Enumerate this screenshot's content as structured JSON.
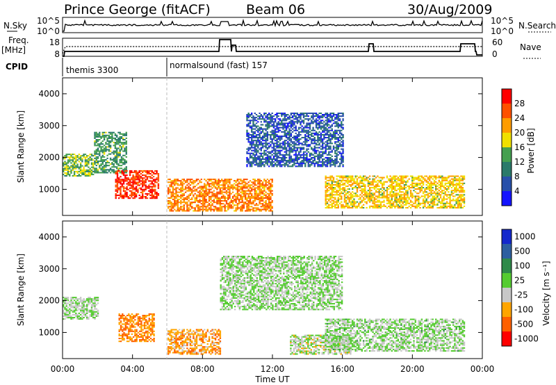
{
  "header": {
    "station": "Prince George (fitACF)",
    "beam": "Beam 06",
    "date": "30/Aug/2009"
  },
  "strips": {
    "nsky_label": "N.Sky",
    "nsky_ticks": [
      "10^5",
      "10^0"
    ],
    "nsearch_label": "N.Search",
    "nsearch_ticks": [
      "10^5",
      "10^0"
    ],
    "freq_label": "Freq.",
    "freq_unit": "[MHz]",
    "freq_ticks": [
      "18",
      "8"
    ],
    "nave_label": "Nave",
    "nave_ticks": [
      "60",
      "0"
    ],
    "cpid_label": "CPID",
    "cpid_segments": [
      "themis 3300",
      "normalsound (fast) 157"
    ]
  },
  "x_axis": {
    "label": "Time UT",
    "ticks": [
      "00:00",
      "04:00",
      "08:00",
      "12:00",
      "16:00",
      "20:00",
      "00:00"
    ]
  },
  "colorbars": {
    "power": {
      "label": "Power [dB]",
      "ticks": [
        "4",
        "8",
        "12",
        "16",
        "20",
        "24",
        "28"
      ],
      "colors": [
        "#1414ff",
        "#2850aa",
        "#2a7a6a",
        "#45a050",
        "#f0e000",
        "#ff9c00",
        "#ff5000",
        "#ff0000"
      ]
    },
    "velocity": {
      "label": "Velocity [m s⁻¹]",
      "ticks": [
        "1000",
        "500",
        "100",
        "25",
        "-25",
        "-100",
        "-500",
        "-1000"
      ],
      "colors": [
        "#1428cc",
        "#2d5fa0",
        "#2f8a4a",
        "#55cc30",
        "#c8c8c8",
        "#ffa500",
        "#ff6000",
        "#ff0000"
      ]
    }
  },
  "chart_data": [
    {
      "type": "heatmap",
      "title": "",
      "xlabel": "Time UT",
      "ylabel": "Slant Range [km]",
      "xlim": [
        0,
        24
      ],
      "ylim": [
        180,
        4500
      ],
      "yticks": [
        1000,
        2000,
        3000,
        4000
      ],
      "colorbar_label": "Power [dB]",
      "colorbar_range": [
        0,
        30
      ],
      "echo_regions": [
        {
          "t": [
            0.0,
            1.8
          ],
          "r": [
            1400,
            2100
          ],
          "value": 14
        },
        {
          "t": [
            1.8,
            3.6
          ],
          "r": [
            1500,
            2800
          ],
          "value": 12
        },
        {
          "t": [
            3.0,
            5.5
          ],
          "r": [
            700,
            1600
          ],
          "value": 26
        },
        {
          "t": [
            6.0,
            12.0
          ],
          "r": [
            300,
            1300
          ],
          "value": 22
        },
        {
          "t": [
            10.5,
            16.0
          ],
          "r": [
            1700,
            3400
          ],
          "value": 6
        },
        {
          "t": [
            15.0,
            23.0
          ],
          "r": [
            400,
            1400
          ],
          "value": 18
        }
      ]
    },
    {
      "type": "heatmap",
      "title": "",
      "xlabel": "Time UT",
      "ylabel": "Slant Range [km]",
      "xlim": [
        0,
        24
      ],
      "ylim": [
        180,
        4500
      ],
      "yticks": [
        1000,
        2000,
        3000,
        4000
      ],
      "colorbar_label": "Velocity [m s⁻¹]",
      "colorbar_range": [
        -1000,
        1000
      ],
      "echo_regions": [
        {
          "t": [
            0.0,
            2.0
          ],
          "r": [
            1400,
            2100
          ],
          "value": 0
        },
        {
          "t": [
            3.2,
            5.2
          ],
          "r": [
            700,
            1600
          ],
          "value": -500
        },
        {
          "t": [
            6.0,
            9.0
          ],
          "r": [
            300,
            1100
          ],
          "value": -400
        },
        {
          "t": [
            9.0,
            16.0
          ],
          "r": [
            1700,
            3400
          ],
          "value": 0
        },
        {
          "t": [
            13.0,
            16.5
          ],
          "r": [
            300,
            900
          ],
          "value": -60
        },
        {
          "t": [
            15.0,
            23.0
          ],
          "r": [
            400,
            1400
          ],
          "value": 10
        }
      ]
    }
  ]
}
